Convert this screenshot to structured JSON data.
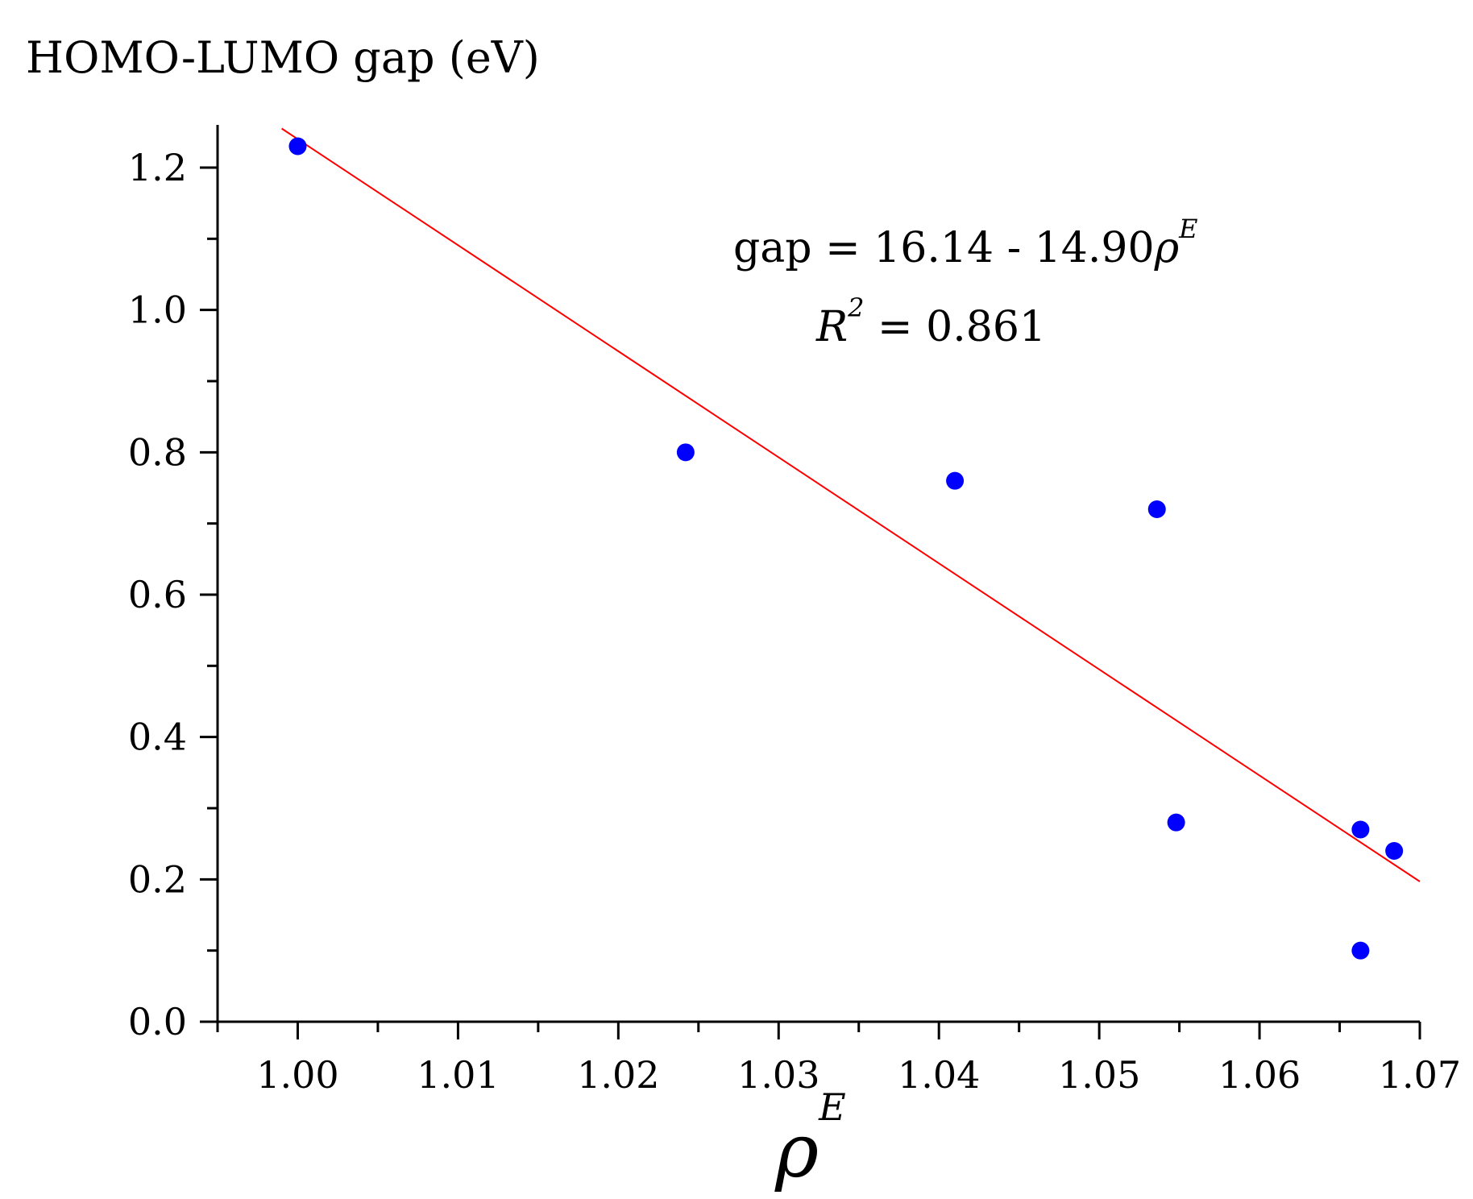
{
  "chart_data": {
    "type": "scatter",
    "ylabel": "HOMO-LUMO gap (eV)",
    "xlabel": {
      "main": "ρ",
      "sup": "E"
    },
    "xlim": [
      0.995,
      1.07
    ],
    "ylim": [
      0.0,
      1.26
    ],
    "x_ticks": [
      1.0,
      1.01,
      1.02,
      1.03,
      1.04,
      1.05,
      1.06,
      1.07
    ],
    "x_tick_labels": [
      "1.00",
      "1.01",
      "1.02",
      "1.03",
      "1.04",
      "1.05",
      "1.06",
      "1.07"
    ],
    "y_ticks": [
      0.0,
      0.2,
      0.4,
      0.6,
      0.8,
      1.0,
      1.2
    ],
    "y_tick_labels": [
      "0.0",
      "0.2",
      "0.4",
      "0.6",
      "0.8",
      "1.0",
      "1.2"
    ],
    "series": [
      {
        "name": "data",
        "color": "#0000ff",
        "points": [
          {
            "x": 1.0,
            "y": 1.23
          },
          {
            "x": 1.0242,
            "y": 0.8
          },
          {
            "x": 1.041,
            "y": 0.76
          },
          {
            "x": 1.0536,
            "y": 0.72
          },
          {
            "x": 1.0548,
            "y": 0.28
          },
          {
            "x": 1.0663,
            "y": 0.27
          },
          {
            "x": 1.0663,
            "y": 0.1
          },
          {
            "x": 1.0684,
            "y": 0.24
          }
        ]
      }
    ],
    "fit": {
      "color": "#ff0000",
      "intercept": 16.14,
      "slope": -14.9,
      "x_range": [
        0.999,
        1.07
      ]
    },
    "annotations": {
      "equation_prefix": "gap = 16.14 - 14.90",
      "equation_var": "ρ",
      "equation_sup": "E",
      "r2_var": "R",
      "r2_sup": "2",
      "r2_value": " = 0.861"
    }
  }
}
